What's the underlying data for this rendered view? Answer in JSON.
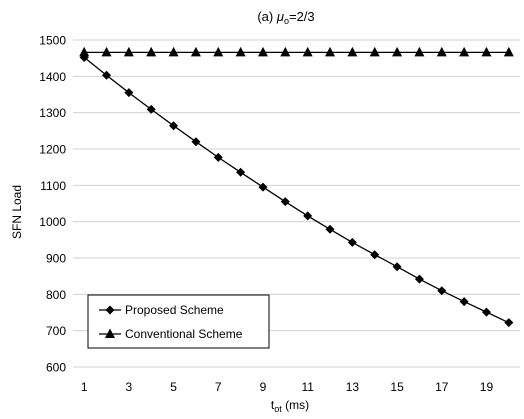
{
  "chart_data": {
    "type": "line",
    "title": "(a) μₒ=2/3",
    "title_prefix": "(a) ",
    "title_mu": "μ",
    "title_sub": "o",
    "title_suffix": "=2/3",
    "xlabel_main": "t",
    "xlabel_sub": "ot",
    "xlabel_unit": " (ms)",
    "ylabel": "SFN Load",
    "xlim": [
      0.5,
      20.5
    ],
    "ylim": [
      600,
      1500
    ],
    "x_ticks": [
      1,
      3,
      5,
      7,
      9,
      11,
      13,
      15,
      17,
      19
    ],
    "y_ticks": [
      600,
      700,
      800,
      900,
      1000,
      1100,
      1200,
      1300,
      1400,
      1500
    ],
    "grid": "horizontal",
    "legend_position": "bottom-left",
    "x": [
      1,
      2,
      3,
      4,
      5,
      6,
      7,
      8,
      9,
      10,
      11,
      12,
      13,
      14,
      15,
      16,
      17,
      18,
      19,
      20
    ],
    "series": [
      {
        "name": "Proposed Scheme",
        "marker": "diamond",
        "values": [
          1452,
          1403,
          1355,
          1309,
          1264,
          1220,
          1177,
          1136,
          1095,
          1055,
          1016,
          979,
          943,
          909,
          876,
          842,
          810,
          780,
          751,
          722
        ]
      },
      {
        "name": "Conventional Scheme",
        "marker": "triangle",
        "values": [
          1466,
          1466,
          1466,
          1466,
          1466,
          1466,
          1466,
          1466,
          1466,
          1466,
          1466,
          1466,
          1466,
          1466,
          1466,
          1466,
          1466,
          1466,
          1466,
          1466
        ]
      }
    ]
  }
}
